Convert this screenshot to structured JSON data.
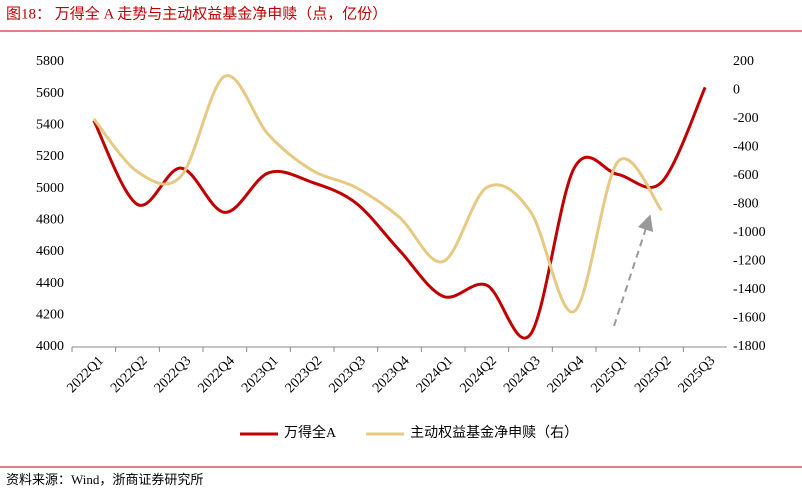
{
  "chart_data": {
    "type": "line",
    "title": "图18：   万得全 A 走势与主动权益基金净申赎（点，亿份）",
    "source": "资料来源：Wind，浙商证券研究所",
    "categories": [
      "2022Q1",
      "2022Q2",
      "2022Q3",
      "2022Q4",
      "2023Q1",
      "2023Q2",
      "2023Q3",
      "2023Q4",
      "2024Q1",
      "2024Q2",
      "2024Q3",
      "2024Q4",
      "2025Q1",
      "2025Q2",
      "2025Q3"
    ],
    "series": [
      {
        "name": "万得全A",
        "color": "#c00000",
        "values": [
          5430,
          4900,
          5130,
          4850,
          5100,
          5040,
          4910,
          4610,
          4320,
          4390,
          4080,
          5130,
          5090,
          5040,
          5640
        ]
      },
      {
        "name": "主动权益基金净申赎（右）",
        "color": "#e6c983",
        "axis": "y2",
        "values": [
          -200,
          -570,
          -600,
          100,
          -310,
          -560,
          -680,
          -890,
          -1200,
          -680,
          -850,
          -1550,
          -500,
          -840,
          null
        ]
      }
    ],
    "ylim": [
      4000,
      5800
    ],
    "yticks": [
      4000,
      4200,
      4400,
      4600,
      4800,
      5000,
      5200,
      5400,
      5600,
      5800
    ],
    "y2lim": [
      -1800,
      200
    ],
    "y2ticks": [
      -1800,
      -1600,
      -1400,
      -1200,
      -1000,
      -800,
      -600,
      -400,
      -200,
      0,
      200
    ],
    "legend": "bottom"
  }
}
